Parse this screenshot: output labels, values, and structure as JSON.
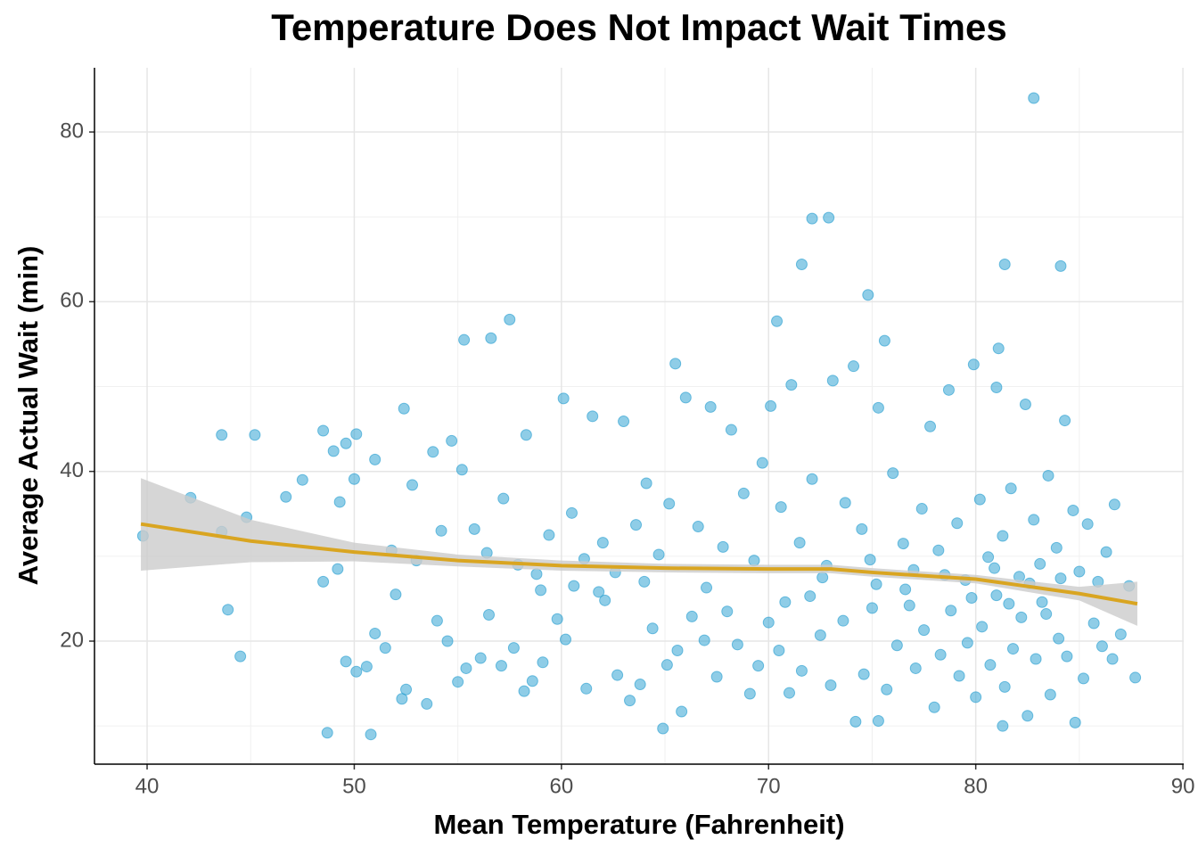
{
  "chart_data": {
    "type": "scatter",
    "title": "Temperature Does Not Impact Wait Times",
    "xlabel": "Mean Temperature (Fahrenheit)",
    "ylabel": "Average Actual Wait (min)",
    "xlim": [
      37.46,
      90.04
    ],
    "ylim": [
      5.5,
      87.57
    ],
    "xticks": [
      40,
      50,
      60,
      70,
      80,
      90
    ],
    "yticks": [
      20,
      40,
      60,
      80
    ],
    "grid": true,
    "color": "#1f9bcf",
    "x": [
      39.8,
      42.1,
      43.6,
      45.2,
      43.9,
      44.5,
      44.8,
      43.6,
      48.7,
      50.8,
      57.5,
      55.3,
      56.6,
      70.4,
      72.1,
      72.9,
      71.6,
      74.8,
      82.8,
      81.4,
      84.1,
      81.1,
      64.9,
      81.3,
      87.7,
      87.4,
      86.7,
      48.5,
      49.0,
      49.6,
      50.1,
      49.3,
      50.0,
      51.0,
      52.4,
      53.8,
      54.7,
      55.2,
      48.5,
      49.2,
      49.6,
      50.1,
      50.6,
      51.0,
      51.5,
      52.0,
      52.5,
      52.3,
      53.5,
      54.0,
      54.5,
      55.0,
      55.4,
      56.1,
      56.5,
      57.1,
      57.7,
      58.2,
      58.6,
      59.1,
      59.8,
      60.2,
      60.6,
      61.2,
      62.1,
      62.7,
      63.3,
      63.8,
      64.4,
      65.1,
      65.6,
      65.8,
      66.3,
      66.9,
      67.5,
      68.0,
      68.5,
      69.1,
      69.5,
      70.0,
      70.5,
      71.0,
      71.6,
      72.0,
      72.5,
      73.0,
      73.6,
      74.2,
      74.6,
      75.0,
      75.3,
      75.7,
      76.2,
      76.6,
      77.1,
      77.5,
      78.0,
      78.3,
      78.8,
      79.2,
      79.6,
      80.0,
      80.3,
      80.7,
      81.0,
      81.4,
      81.8,
      82.2,
      82.5,
      82.9,
      83.2,
      83.6,
      84.0,
      84.4,
      84.8,
      85.2,
      85.7,
      86.1,
      86.6,
      87.0,
      55.8,
      56.4,
      57.2,
      57.9,
      58.3,
      58.8,
      59.4,
      60.1,
      60.5,
      61.1,
      61.5,
      62.0,
      62.6,
      63.0,
      63.6,
      64.1,
      64.7,
      65.2,
      65.5,
      66.0,
      66.6,
      67.2,
      67.8,
      68.2,
      68.8,
      69.3,
      69.7,
      70.1,
      70.6,
      71.1,
      71.5,
      72.1,
      72.6,
      73.1,
      73.7,
      74.1,
      74.5,
      74.9,
      75.3,
      75.6,
      76.0,
      76.5,
      77.0,
      77.4,
      77.8,
      78.2,
      78.7,
      79.1,
      79.5,
      79.9,
      80.2,
      80.6,
      81.0,
      81.3,
      81.7,
      82.1,
      82.4,
      82.8,
      83.1,
      83.5,
      83.9,
      84.3,
      84.7,
      85.0,
      85.4,
      85.9,
      86.3,
      75.2,
      76.8,
      78.5,
      79.8,
      80.9,
      81.6,
      82.6,
      83.4,
      84.1,
      70.8,
      72.8,
      67.0,
      64.0,
      61.8,
      59.0,
      53.0,
      51.8,
      54.2,
      52.8,
      47.5,
      46.7
    ],
    "values": [
      32.4,
      36.9,
      44.3,
      44.3,
      23.7,
      18.2,
      34.6,
      32.9,
      9.2,
      9.0,
      57.9,
      55.5,
      55.7,
      57.7,
      69.8,
      69.9,
      64.4,
      60.8,
      84.0,
      64.4,
      64.2,
      54.5,
      9.7,
      10.0,
      15.7,
      26.5,
      36.1,
      44.8,
      42.4,
      43.3,
      44.4,
      36.4,
      39.1,
      41.4,
      47.4,
      42.3,
      43.6,
      40.2,
      27.0,
      28.5,
      17.6,
      16.4,
      17.0,
      20.9,
      19.2,
      25.5,
      14.3,
      13.2,
      12.6,
      22.4,
      20.0,
      15.2,
      16.8,
      18.0,
      23.1,
      17.1,
      19.2,
      14.1,
      15.3,
      17.5,
      22.6,
      20.2,
      26.5,
      14.4,
      24.8,
      16.0,
      13.0,
      14.9,
      21.5,
      17.2,
      18.9,
      11.7,
      22.9,
      20.1,
      15.8,
      23.5,
      19.6,
      13.8,
      17.1,
      22.2,
      18.9,
      13.9,
      16.5,
      25.3,
      20.7,
      14.8,
      22.4,
      10.5,
      16.1,
      23.9,
      10.6,
      14.3,
      19.5,
      26.1,
      16.8,
      21.3,
      12.2,
      18.4,
      23.6,
      15.9,
      19.8,
      13.4,
      21.7,
      17.2,
      25.4,
      14.6,
      19.1,
      22.8,
      11.2,
      17.9,
      24.6,
      13.7,
      20.3,
      18.2,
      10.4,
      15.6,
      22.1,
      19.4,
      17.9,
      20.8,
      33.2,
      30.4,
      36.8,
      29.0,
      44.3,
      27.9,
      32.5,
      48.6,
      35.1,
      29.7,
      46.5,
      31.6,
      28.1,
      45.9,
      33.7,
      38.6,
      30.2,
      36.2,
      52.7,
      48.7,
      33.5,
      47.6,
      31.1,
      44.9,
      37.4,
      29.5,
      41.0,
      47.7,
      35.8,
      50.2,
      31.6,
      39.1,
      27.5,
      50.7,
      36.3,
      52.4,
      33.2,
      29.6,
      47.5,
      55.4,
      39.8,
      31.5,
      28.4,
      35.6,
      45.3,
      30.7,
      49.6,
      33.9,
      27.2,
      52.6,
      36.7,
      29.9,
      49.9,
      32.4,
      38.0,
      27.6,
      47.9,
      34.3,
      29.1,
      39.5,
      31.0,
      46.0,
      35.4,
      28.2,
      33.8,
      27.0,
      30.5,
      26.7,
      24.2,
      27.8,
      25.1,
      28.6,
      24.4,
      26.8,
      23.2,
      27.4,
      24.6,
      28.9,
      26.3,
      27.0,
      25.8,
      26.0,
      29.5,
      30.7,
      33.0,
      38.4,
      39.0,
      37.0
    ],
    "trend": {
      "color": "#d9a521",
      "band_color": "#cccccc",
      "x": [
        39.7,
        45,
        50,
        55,
        60,
        65,
        70,
        73,
        75,
        80,
        85,
        87.8
      ],
      "y": [
        33.8,
        31.8,
        30.5,
        29.5,
        28.9,
        28.6,
        28.5,
        28.5,
        28.1,
        27.3,
        25.6,
        24.4
      ],
      "lower": [
        28.3,
        29.3,
        29.4,
        28.8,
        28.3,
        28.1,
        28.0,
        28.0,
        27.6,
        26.8,
        24.8,
        21.8
      ],
      "upper": [
        39.2,
        34.3,
        31.6,
        30.2,
        29.5,
        29.1,
        29.0,
        29.0,
        28.6,
        27.8,
        26.4,
        27.0
      ]
    }
  }
}
